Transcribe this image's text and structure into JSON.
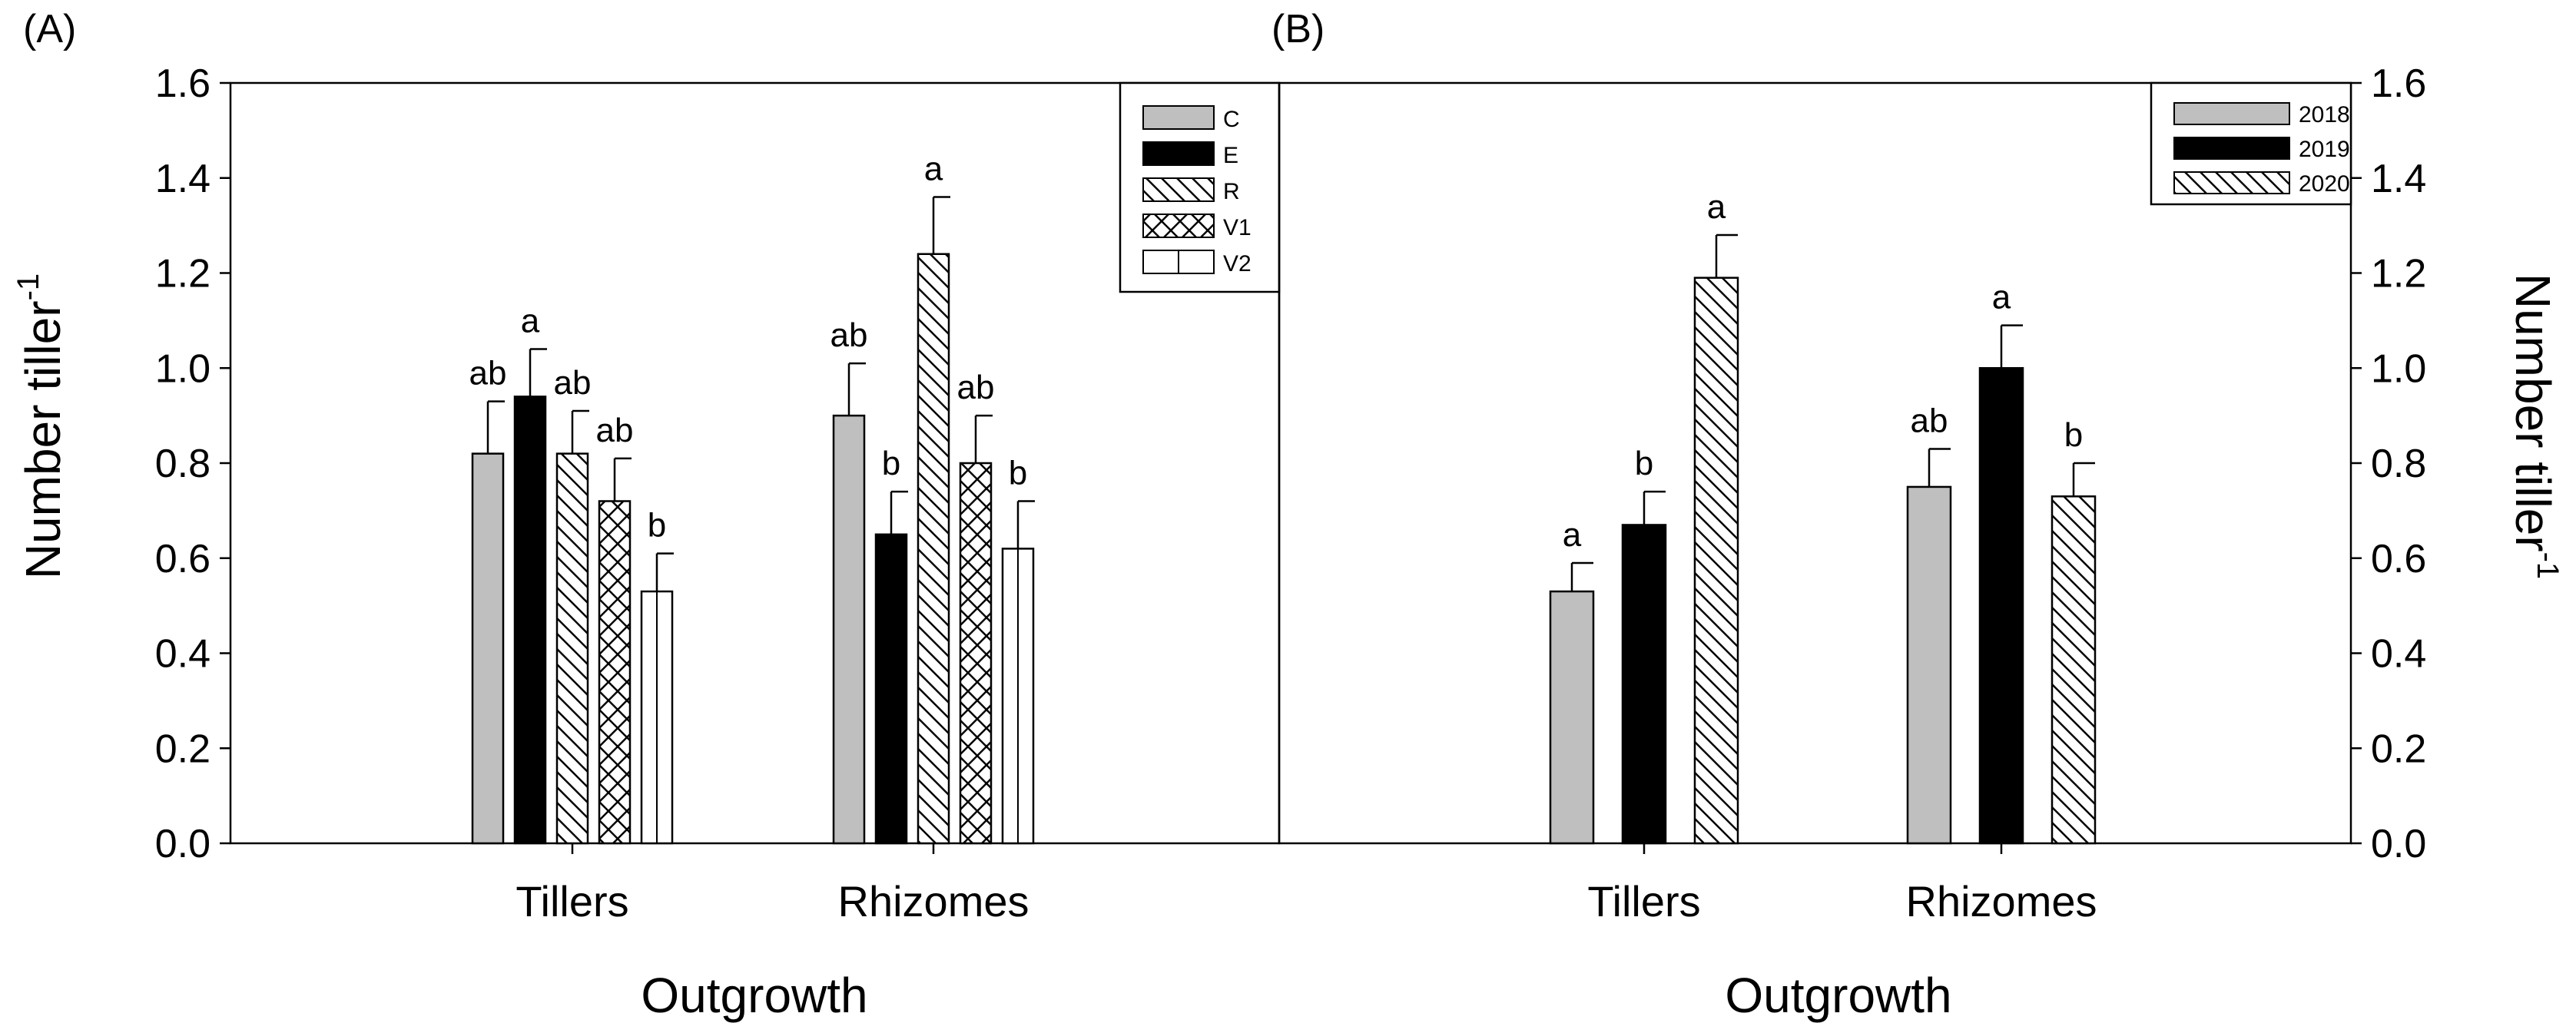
{
  "colors": {
    "gray": "#bfbfbf",
    "black": "#000000",
    "white": "#ffffff",
    "axis": "#000000"
  },
  "chart_data": [
    {
      "panel_label": "(A)",
      "type": "bar",
      "xlabel": "Outgrowth",
      "ylabel_main": "Number tiller",
      "ylabel_sup": "-1",
      "ylim": [
        0,
        1.6
      ],
      "yticks": [
        "0.0",
        "0.2",
        "0.4",
        "0.6",
        "0.8",
        "1.0",
        "1.2",
        "1.4",
        "1.6"
      ],
      "categories": [
        "Tillers",
        "Rhizomes"
      ],
      "legend_position": "top-right",
      "series": [
        {
          "name": "C",
          "pattern": "gray",
          "values": [
            0.82,
            0.9
          ],
          "errors": [
            0.11,
            0.11
          ],
          "letters": [
            "ab",
            "ab"
          ]
        },
        {
          "name": "E",
          "pattern": "black",
          "values": [
            0.94,
            0.65
          ],
          "errors": [
            0.1,
            0.09
          ],
          "letters": [
            "a",
            "b"
          ]
        },
        {
          "name": "R",
          "pattern": "diag",
          "values": [
            0.82,
            1.24
          ],
          "errors": [
            0.09,
            0.12
          ],
          "letters": [
            "ab",
            "a"
          ]
        },
        {
          "name": "V1",
          "pattern": "cross",
          "values": [
            0.72,
            0.8
          ],
          "errors": [
            0.09,
            0.1
          ],
          "letters": [
            "ab",
            "ab"
          ]
        },
        {
          "name": "V2",
          "pattern": "vlines",
          "values": [
            0.53,
            0.62
          ],
          "errors": [
            0.08,
            0.1
          ],
          "letters": [
            "b",
            "b"
          ]
        }
      ]
    },
    {
      "panel_label": "(B)",
      "type": "bar",
      "xlabel": "Outgrowth",
      "ylabel_main": "Number tiller",
      "ylabel_sup": "-1",
      "ylim": [
        0,
        1.6
      ],
      "yticks": [
        "0.0",
        "0.2",
        "0.4",
        "0.6",
        "0.8",
        "1.0",
        "1.2",
        "1.4",
        "1.6"
      ],
      "categories": [
        "Tillers",
        "Rhizomes"
      ],
      "legend_position": "top-right",
      "series": [
        {
          "name": "2018",
          "pattern": "gray",
          "values": [
            0.53,
            0.75
          ],
          "errors": [
            0.06,
            0.08
          ],
          "letters": [
            "a",
            "ab"
          ]
        },
        {
          "name": "2019",
          "pattern": "black",
          "values": [
            0.67,
            1.0
          ],
          "errors": [
            0.07,
            0.09
          ],
          "letters": [
            "b",
            "a"
          ]
        },
        {
          "name": "2020",
          "pattern": "diag",
          "values": [
            1.19,
            0.73
          ],
          "errors": [
            0.09,
            0.07
          ],
          "letters": [
            "a",
            "b"
          ]
        }
      ]
    }
  ]
}
